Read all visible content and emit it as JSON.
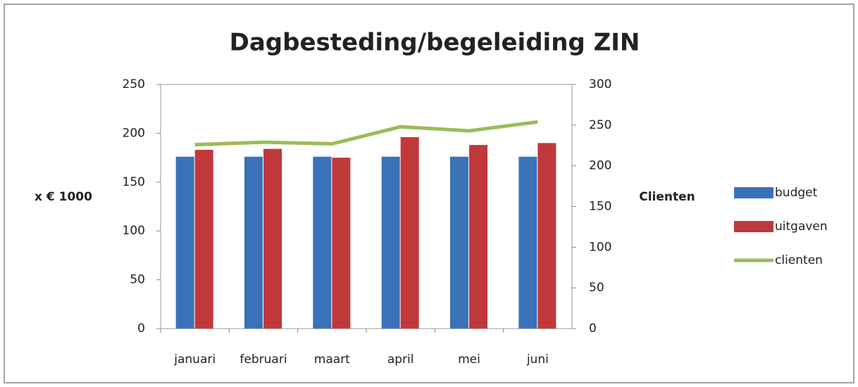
{
  "chart_data": {
    "type": "bar-line",
    "title": "Dagbesteding/begeleiding ZIN",
    "y_label": "x € 1000",
    "y2_label": "Clienten",
    "categories": [
      "januari",
      "februari",
      "maart",
      "april",
      "mei",
      "juni"
    ],
    "series": [
      {
        "name": "budget",
        "type": "bar",
        "color": "#3a72b8",
        "values": [
          176,
          176,
          176,
          176,
          176,
          176
        ]
      },
      {
        "name": "uitgaven",
        "type": "bar",
        "color": "#c0393a",
        "values": [
          183,
          184,
          175,
          196,
          188,
          190
        ]
      },
      {
        "name": "clienten",
        "type": "line",
        "axis": "y2",
        "color": "#9bbb59",
        "values": [
          226,
          229,
          227,
          248,
          243,
          254
        ]
      }
    ],
    "ylim": [
      0,
      250
    ],
    "yticks": [
      0,
      50,
      100,
      150,
      200,
      250
    ],
    "y2lim": [
      0,
      300
    ],
    "y2ticks": [
      0,
      50,
      100,
      150,
      200,
      250,
      300
    ],
    "legend": "right"
  }
}
